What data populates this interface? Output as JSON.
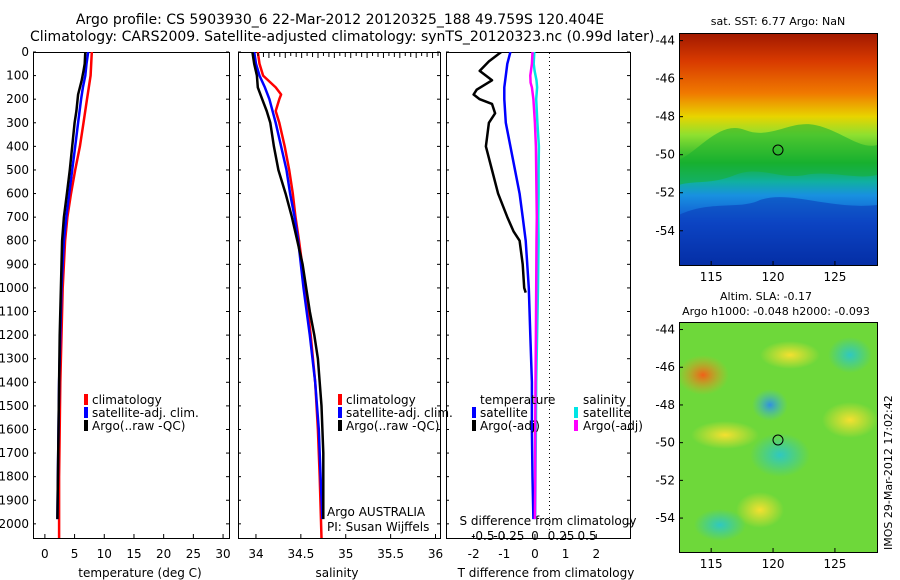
{
  "header": {
    "title_line1": "Argo profile: CS 5903930_6 22-Mar-2012 20120325_188 49.759S 120.404E",
    "title_line2": "Climatology: CARS2009. Satellite-adjusted climatology: synTS_20120323.nc (0.99d later)"
  },
  "colors": {
    "climatology": "#ff0000",
    "satellite": "#0000ff",
    "argo": "#000000",
    "sal_satellite": "#00e5e5",
    "sal_argo": "#ff00ff"
  },
  "depth_axis": {
    "ticks": [
      0,
      100,
      200,
      300,
      400,
      500,
      600,
      700,
      800,
      900,
      1000,
      1100,
      1200,
      1300,
      1400,
      1500,
      1600,
      1700,
      1800,
      1900,
      2000
    ],
    "range": [
      0,
      2060
    ]
  },
  "chart_data": [
    {
      "type": "line",
      "id": "temperature",
      "xlabel": "temperature (deg C)",
      "xlim": [
        -2,
        31
      ],
      "xticks": [
        0,
        5,
        10,
        15,
        20,
        25,
        30
      ],
      "legend": [
        "climatology",
        "satellite-adj. clim.",
        "Argo(..raw -QC)"
      ],
      "series": [
        {
          "name": "climatology",
          "color": "#ff0000",
          "depth": [
            0,
            50,
            100,
            150,
            200,
            300,
            400,
            500,
            600,
            700,
            800,
            1000,
            1200,
            1400,
            1600,
            1800,
            2060
          ],
          "values": [
            7.9,
            7.8,
            7.7,
            7.4,
            7.1,
            6.5,
            5.9,
            5.1,
            4.4,
            3.8,
            3.4,
            3.0,
            2.8,
            2.6,
            2.5,
            2.4,
            2.4
          ]
        },
        {
          "name": "satellite-adj. clim.",
          "color": "#0000ff",
          "depth": [
            0,
            50,
            100,
            150,
            200,
            300,
            400,
            500,
            600,
            700,
            800,
            1000,
            1200,
            1400,
            1600,
            1800,
            1980
          ],
          "values": [
            7.3,
            7.0,
            6.8,
            6.4,
            6.1,
            5.6,
            5.1,
            4.6,
            4.1,
            3.6,
            3.2,
            2.8,
            2.6,
            2.4,
            2.3,
            2.2,
            2.1
          ]
        },
        {
          "name": "Argo(..raw -QC)",
          "color": "#000000",
          "depth": [
            0,
            50,
            80,
            120,
            150,
            180,
            250,
            300,
            400,
            500,
            600,
            700,
            800,
            900,
            1000,
            1200,
            1400,
            1600,
            1800,
            1980
          ],
          "values": [
            6.8,
            6.7,
            6.5,
            6.2,
            5.9,
            5.6,
            5.3,
            5.0,
            4.6,
            4.2,
            3.7,
            3.2,
            2.9,
            2.8,
            2.7,
            2.5,
            2.4,
            2.3,
            2.2,
            2.1
          ]
        }
      ]
    },
    {
      "type": "line",
      "id": "salinity",
      "xlabel": "salinity",
      "xlim": [
        33.8,
        36.05
      ],
      "xticks": [
        34,
        34.5,
        35,
        35.5,
        36
      ],
      "xticklabels": [
        "34",
        "34.5",
        "35",
        "35.5",
        "36"
      ],
      "legend": [
        "climatology",
        "satellite-adj. clim.",
        "Argo(..raw -QC)"
      ],
      "annotation": [
        "Argo AUSTRALIA",
        "PI: Susan Wijffels"
      ],
      "series": [
        {
          "name": "climatology",
          "color": "#ff0000",
          "depth": [
            0,
            50,
            100,
            150,
            180,
            200,
            250,
            300,
            400,
            500,
            600,
            700,
            800,
            1000,
            1200,
            1400,
            1600,
            1800,
            2060
          ],
          "values": [
            34.02,
            34.04,
            34.08,
            34.22,
            34.28,
            34.26,
            34.22,
            34.26,
            34.32,
            34.37,
            34.41,
            34.44,
            34.48,
            34.55,
            34.61,
            34.66,
            34.69,
            34.71,
            34.73
          ]
        },
        {
          "name": "satellite-adj. clim.",
          "color": "#0000ff",
          "depth": [
            0,
            50,
            100,
            150,
            200,
            300,
            400,
            500,
            600,
            700,
            800,
            1000,
            1200,
            1400,
            1600,
            1800,
            1980
          ],
          "values": [
            33.98,
            34.0,
            34.04,
            34.1,
            34.15,
            34.22,
            34.28,
            34.34,
            34.38,
            34.43,
            34.47,
            34.53,
            34.6,
            34.66,
            34.7,
            34.72,
            34.74
          ]
        },
        {
          "name": "Argo(..raw -QC)",
          "color": "#000000",
          "depth": [
            0,
            50,
            100,
            150,
            200,
            250,
            300,
            400,
            500,
            600,
            700,
            800,
            900,
            1000,
            1100,
            1200,
            1300,
            1400,
            1500,
            1600,
            1700,
            1800,
            1900,
            1980
          ],
          "values": [
            33.96,
            33.98,
            34.01,
            34.02,
            34.07,
            34.12,
            34.16,
            34.2,
            34.25,
            34.33,
            34.4,
            34.46,
            34.52,
            34.56,
            34.6,
            34.65,
            34.69,
            34.71,
            34.73,
            34.74,
            34.75,
            34.75,
            34.75,
            34.75
          ]
        }
      ],
      "surface_markers_count": 34
    },
    {
      "type": "line",
      "id": "differences",
      "xlabel": "T difference from climatology",
      "top_label": "S difference from climatology",
      "xlim": [
        -2.9,
        3.1
      ],
      "xticks": [
        -2,
        -1,
        0,
        1,
        2
      ],
      "s_ticklabels": [
        "-0.5",
        "-0.25",
        "0",
        "0.25",
        "0.5"
      ],
      "legend_titles": [
        "temperature",
        "salinity"
      ],
      "legend": [
        "satellite",
        "Argo(-adj)",
        "satellite",
        "Argo(-adj)"
      ],
      "series": [
        {
          "name": "temperature satellite",
          "color": "#0000ff",
          "depth": [
            0,
            50,
            100,
            150,
            200,
            300,
            400,
            500,
            600,
            700,
            800,
            1000,
            1200,
            1400,
            1600,
            1800,
            1980
          ],
          "values": [
            -0.8,
            -0.9,
            -0.95,
            -1.0,
            -1.0,
            -0.95,
            -0.8,
            -0.65,
            -0.5,
            -0.4,
            -0.3,
            -0.2,
            -0.15,
            -0.1,
            -0.1,
            -0.08,
            -0.05
          ]
        },
        {
          "name": "temperature Argo(-adj)",
          "color": "#000000",
          "depth": [
            0,
            40,
            80,
            120,
            160,
            180,
            200,
            220,
            260,
            300,
            400,
            500,
            600,
            700,
            760,
            800,
            900,
            1000,
            1020
          ],
          "values": [
            -1.1,
            -1.5,
            -1.8,
            -1.4,
            -1.9,
            -2.0,
            -1.8,
            -1.4,
            -1.3,
            -1.5,
            -1.6,
            -1.4,
            -1.2,
            -0.9,
            -0.7,
            -0.5,
            -0.4,
            -0.35,
            -0.3
          ]
        },
        {
          "name": "salinity satellite",
          "color": "#00e5e5",
          "depth": [
            0,
            50,
            80,
            120,
            150,
            200,
            300,
            400,
            500,
            600,
            700,
            800,
            1000,
            1200,
            1400,
            1600,
            1800,
            1980
          ],
          "values": [
            -0.02,
            -0.04,
            -0.01,
            0.05,
            0.07,
            0.04,
            0.08,
            0.13,
            0.12,
            0.12,
            0.11,
            0.12,
            0.1,
            0.07,
            0.04,
            0.03,
            0.02,
            0.01
          ]
        },
        {
          "name": "salinity Argo(-adj)",
          "color": "#ff00ff",
          "depth": [
            0,
            50,
            100,
            130,
            150,
            200,
            300,
            400,
            500,
            600,
            700,
            800,
            1000,
            1200,
            1400,
            1600,
            1800,
            1980
          ],
          "values": [
            -0.08,
            -0.1,
            -0.15,
            -0.14,
            -0.1,
            -0.05,
            0.0,
            0.03,
            0.04,
            0.05,
            0.06,
            0.05,
            0.04,
            0.03,
            0.02,
            0.01,
            0.01,
            0.0
          ]
        }
      ]
    }
  ],
  "maps": {
    "sst_title": "sat. SST: 6.77 Argo: NaN",
    "sla_title_line1": "Altim. SLA: -0.17",
    "sla_title_line2": "Argo h1000: -0.048 h2000: -0.093",
    "lat_ticks": [
      "-44",
      "-46",
      "-48",
      "-50",
      "-52",
      "-54"
    ],
    "lon_ticks": [
      "115",
      "120",
      "125"
    ],
    "float_position": {
      "lon": 120.404,
      "lat": -49.759
    }
  },
  "stamp": "IMOS 29-Mar-2012 17:02:42"
}
